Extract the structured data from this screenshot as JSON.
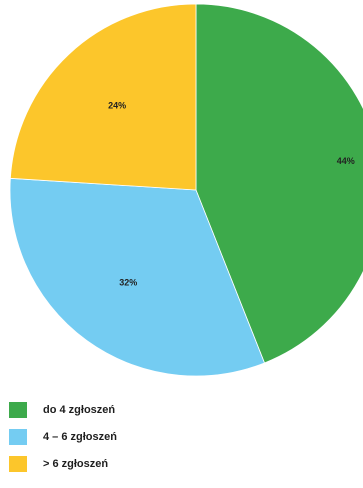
{
  "chart_data": {
    "type": "pie",
    "title": "",
    "start_angle_deg": 0,
    "direction": "clockwise",
    "slices": [
      {
        "label": "do 4 zgłoszeń",
        "value": 44,
        "value_label": "44%",
        "color": "#3daa4b"
      },
      {
        "label": "4 – 6 zgłoszeń",
        "value": 32,
        "value_label": "32%",
        "color": "#74ccf2"
      },
      {
        "label": "> 6 zgłoszeń",
        "value": 24,
        "value_label": "24%",
        "color": "#fcc62b"
      }
    ],
    "legend_position": "bottom-left"
  }
}
